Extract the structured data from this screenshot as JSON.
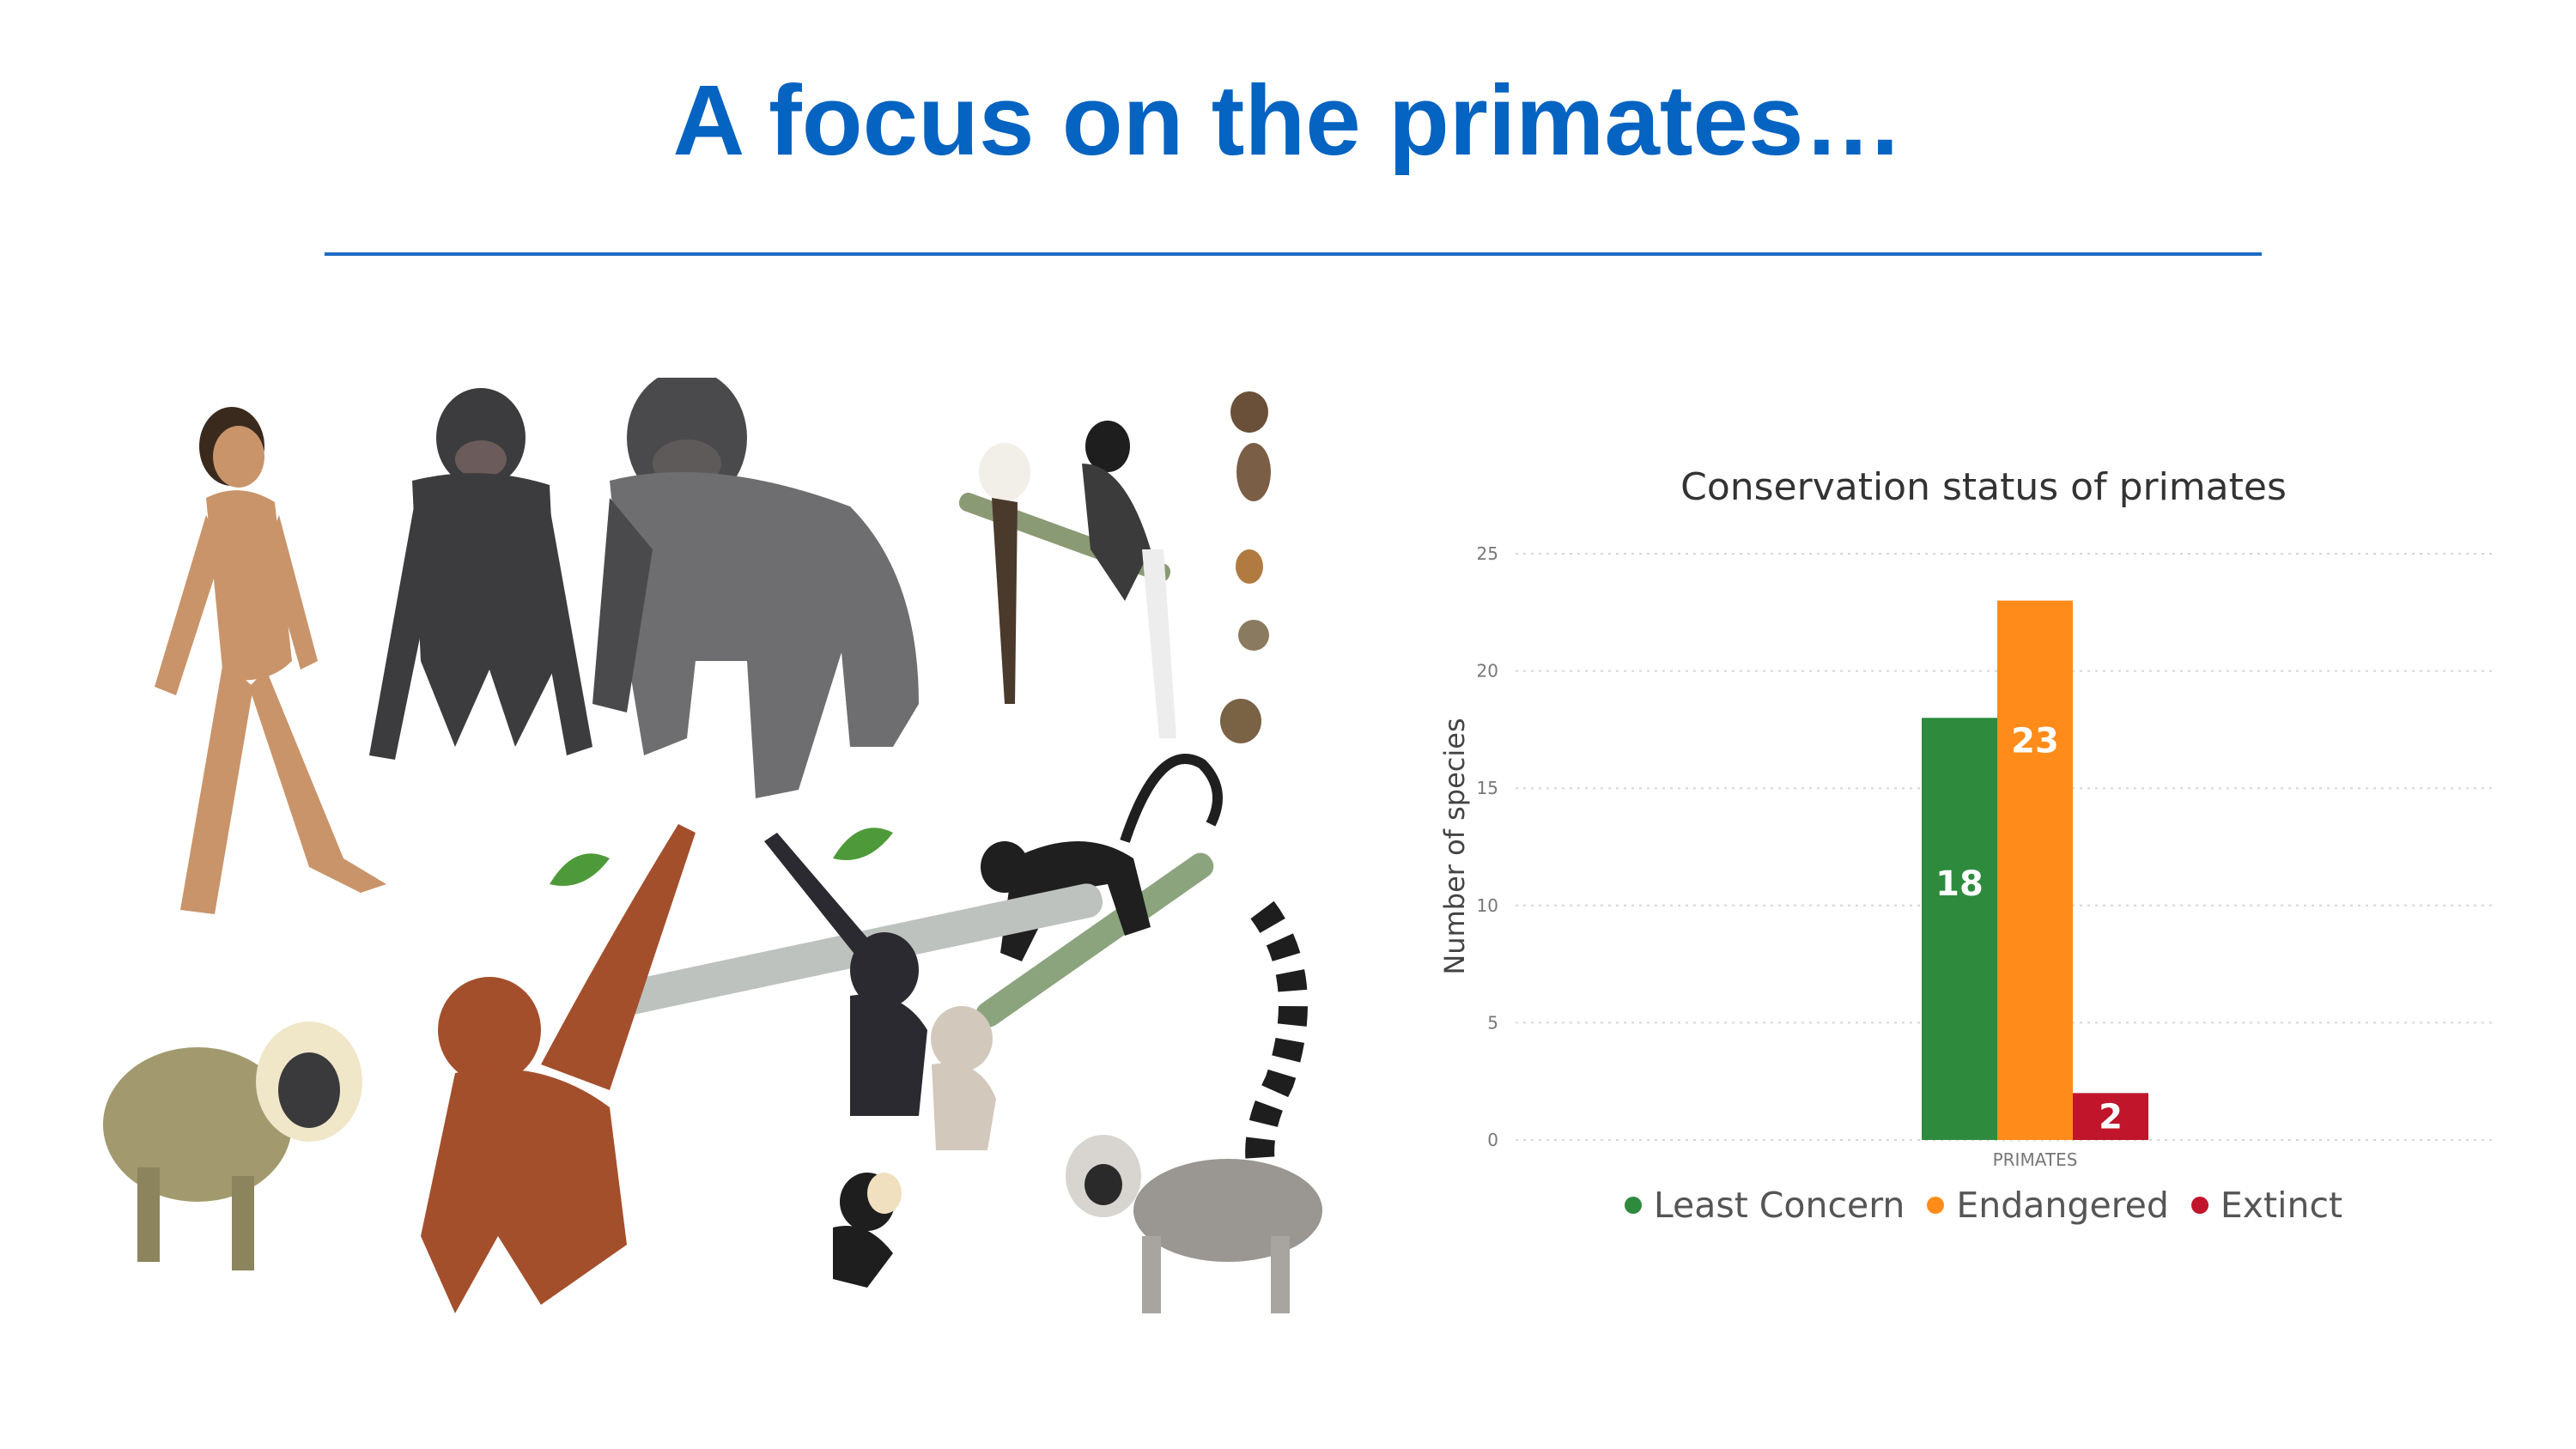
{
  "slide": {
    "title": "A focus on the primates…",
    "title_color": "#0563C1",
    "rule_color": "#1F6BC4"
  },
  "illustration": {
    "description": "primate-species-illustration",
    "subjects": [
      "human",
      "bonobo",
      "gorilla",
      "tamarin",
      "colobus",
      "tarsier",
      "loris",
      "spider-monkey",
      "lemur",
      "mandrill",
      "orangutan",
      "gibbon",
      "marmoset"
    ]
  },
  "chart_data": {
    "type": "bar",
    "title": "Conservation status of primates",
    "xlabel": "",
    "ylabel": "Number of species",
    "categories": [
      "PRIMATES"
    ],
    "series": [
      {
        "name": "Least Concern",
        "values": [
          18
        ],
        "color": "#2E8B3E"
      },
      {
        "name": "Endangered",
        "values": [
          23
        ],
        "color": "#FF8C1A"
      },
      {
        "name": "Extinct",
        "values": [
          2
        ],
        "color": "#C0152A"
      }
    ],
    "ylim": [
      0,
      25
    ],
    "yticks": [
      0,
      5,
      10,
      15,
      20,
      25
    ],
    "grid": true,
    "legend_position": "bottom",
    "data_labels": true
  }
}
